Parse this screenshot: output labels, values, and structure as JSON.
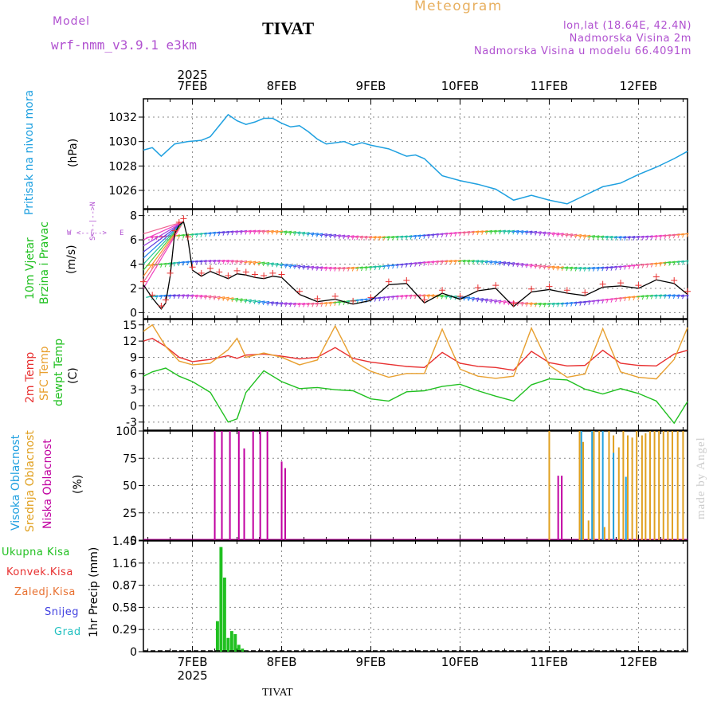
{
  "header": {
    "model_label": "Model",
    "model_name": "wrf-nmm_v3.9.1  e3km",
    "station": "TIVAT",
    "chart_title": "Meteogram",
    "coords": "lon,lat (18.64E, 42.4N)",
    "elevation": "Nadmorska Visina 2m",
    "model_elevation": "Nadmorska Visina u modelu 66.4091m"
  },
  "footer": {
    "station": "TIVAT",
    "watermark": "made by Angel"
  },
  "colors": {
    "pressure": "#1ea0e0",
    "t2m": "#e83030",
    "sfc": "#e8a030",
    "dew": "#20c020",
    "speed": "#000000",
    "cloud_high": "#20a0e0",
    "cloud_mid": "#e0a020",
    "cloud_low": "#c000a0",
    "precip": "#20c020",
    "purple": "#b050d0"
  },
  "chart_data": [
    {
      "type": "line",
      "panel": "pressure",
      "ylabel": [
        "Pritisak na nivou mora",
        "(hPa)"
      ],
      "ylim": [
        1024.5,
        1033.5
      ],
      "yticks": [
        1026,
        1028,
        1030,
        1032
      ],
      "x_unit": "days from 7FEB 00Z",
      "x": [
        -0.55,
        -0.45,
        -0.35,
        -0.2,
        -0.05,
        0.1,
        0.2,
        0.3,
        0.4,
        0.5,
        0.6,
        0.7,
        0.8,
        0.9,
        1.0,
        1.1,
        1.2,
        1.3,
        1.4,
        1.5,
        1.6,
        1.7,
        1.8,
        1.9,
        2.0,
        2.2,
        2.4,
        2.5,
        2.6,
        2.8,
        3.0,
        3.2,
        3.4,
        3.6,
        3.8,
        4.0,
        4.2,
        4.4,
        4.6,
        4.8,
        5.0,
        5.2,
        5.4,
        5.55
      ],
      "values": [
        1029.3,
        1029.5,
        1028.8,
        1029.8,
        1030.0,
        1030.1,
        1030.4,
        1031.3,
        1032.2,
        1031.7,
        1031.4,
        1031.6,
        1031.9,
        1031.9,
        1031.5,
        1031.2,
        1031.3,
        1030.8,
        1030.2,
        1029.8,
        1029.9,
        1030.0,
        1029.7,
        1029.9,
        1029.7,
        1029.4,
        1028.8,
        1028.9,
        1028.6,
        1027.2,
        1026.8,
        1026.5,
        1026.1,
        1025.2,
        1025.6,
        1025.2,
        1024.9,
        1025.6,
        1026.3,
        1026.6,
        1027.3,
        1027.9,
        1028.6,
        1029.2
      ]
    },
    {
      "type": "line",
      "panel": "wind",
      "ylabel": [
        "10m Vjetar",
        "Brzina i Pravac",
        "(m/s)"
      ],
      "compass": "N\n<-- | -->\nW   E\n<-- | -->\nS",
      "ylim": [
        -0.5,
        8.5
      ],
      "yticks": [
        0,
        2,
        4,
        6,
        8
      ],
      "x": [
        -0.55,
        -0.45,
        -0.35,
        -0.3,
        -0.25,
        -0.2,
        -0.15,
        -0.1,
        -0.05,
        0.0,
        0.1,
        0.2,
        0.3,
        0.4,
        0.5,
        0.6,
        0.7,
        0.8,
        0.9,
        1.0,
        1.2,
        1.4,
        1.6,
        1.8,
        2.0,
        2.2,
        2.4,
        2.6,
        2.8,
        3.0,
        3.2,
        3.4,
        3.6,
        3.8,
        4.0,
        4.2,
        4.4,
        4.6,
        4.8,
        5.0,
        5.2,
        5.4,
        5.55
      ],
      "values": [
        2.3,
        1.2,
        0.3,
        0.8,
        3.0,
        6.5,
        7.2,
        7.5,
        6.0,
        3.5,
        3.0,
        3.4,
        3.1,
        2.8,
        3.2,
        3.1,
        2.9,
        2.8,
        3.0,
        2.9,
        1.5,
        0.9,
        1.1,
        0.7,
        1.0,
        2.3,
        2.4,
        0.8,
        1.6,
        1.1,
        1.8,
        2.0,
        0.5,
        1.7,
        1.9,
        1.6,
        1.4,
        2.1,
        2.2,
        2.0,
        2.7,
        2.4,
        1.5
      ]
    },
    {
      "type": "line",
      "panel": "temperature",
      "ylabel": [
        "2m Temp",
        "SFC Temp",
        "dewpt Temp",
        "(C)"
      ],
      "ylim": [
        -4.5,
        16
      ],
      "yticks": [
        -3,
        0,
        3,
        6,
        9,
        12,
        15
      ],
      "x": [
        -0.55,
        -0.45,
        -0.3,
        -0.15,
        0.0,
        0.2,
        0.4,
        0.5,
        0.6,
        0.8,
        1.0,
        1.2,
        1.4,
        1.6,
        1.8,
        2.0,
        2.2,
        2.4,
        2.6,
        2.8,
        3.0,
        3.2,
        3.4,
        3.6,
        3.8,
        4.0,
        4.2,
        4.4,
        4.6,
        4.8,
        5.0,
        5.2,
        5.4,
        5.55
      ],
      "series": [
        {
          "name": "2m Temp",
          "values": [
            12.0,
            12.5,
            11.0,
            9.0,
            8.2,
            8.6,
            9.3,
            8.8,
            9.4,
            9.6,
            9.2,
            8.7,
            9.0,
            10.8,
            8.8,
            8.1,
            7.7,
            7.3,
            7.1,
            9.9,
            7.9,
            7.3,
            7.1,
            6.6,
            10.1,
            8.0,
            7.4,
            7.5,
            10.3,
            7.9,
            7.5,
            7.4,
            9.6,
            10.3
          ]
        },
        {
          "name": "SFC Temp",
          "values": [
            13.8,
            15.0,
            11.0,
            8.3,
            7.6,
            7.9,
            10.4,
            12.5,
            9.0,
            9.8,
            9.0,
            7.6,
            8.5,
            14.8,
            8.3,
            6.4,
            5.3,
            6.0,
            6.0,
            14.2,
            6.8,
            5.5,
            5.1,
            5.5,
            14.4,
            7.5,
            5.3,
            5.9,
            14.3,
            6.3,
            5.3,
            5.0,
            8.6,
            14.5
          ]
        },
        {
          "name": "dewpt Temp",
          "values": [
            5.5,
            6.3,
            7.0,
            5.5,
            4.5,
            2.5,
            -3.0,
            -2.4,
            2.5,
            6.5,
            4.5,
            3.2,
            3.4,
            3.0,
            2.8,
            1.3,
            0.9,
            2.6,
            2.8,
            3.6,
            4.0,
            2.8,
            1.8,
            0.9,
            3.9,
            5.0,
            4.8,
            3.1,
            2.2,
            3.2,
            2.3,
            0.9,
            -3.2,
            0.8
          ]
        }
      ]
    },
    {
      "type": "bar",
      "panel": "clouds",
      "ylabel": [
        "Visoka Oblacnost",
        "Srednja Oblacnost",
        "Niska Oblacnost",
        "(%)"
      ],
      "ylim": [
        0,
        100
      ],
      "yticks": [
        0,
        25,
        50,
        75,
        100
      ],
      "series": [
        {
          "name": "Niska Oblacnost",
          "x": [
            0.25,
            0.33,
            0.42,
            0.52,
            0.58,
            0.68,
            0.76,
            0.84,
            1.0,
            1.04,
            4.1,
            4.14
          ],
          "values": [
            100,
            100,
            100,
            100,
            84,
            100,
            100,
            100,
            72,
            66,
            59,
            59
          ]
        },
        {
          "name": "Srednja Oblacnost",
          "x": [
            4.0,
            4.34,
            4.38,
            4.44,
            4.5,
            4.56,
            4.62,
            4.67,
            4.72,
            4.78,
            4.83,
            4.88,
            4.93,
            4.98,
            5.04,
            5.08,
            5.13,
            5.18,
            5.23,
            5.28,
            5.33,
            5.38,
            5.44,
            5.5
          ],
          "values": [
            100,
            100,
            90,
            18,
            100,
            100,
            12,
            100,
            96,
            85,
            100,
            96,
            94,
            100,
            96,
            98,
            100,
            100,
            100,
            100,
            100,
            100,
            100,
            100
          ]
        },
        {
          "name": "Visoka Oblacnost",
          "x": [
            4.36,
            4.48,
            4.6,
            4.72,
            4.86
          ],
          "values": [
            100,
            100,
            100,
            80,
            58
          ]
        }
      ]
    },
    {
      "type": "bar",
      "panel": "precipitation",
      "ylabel": [
        "1hr Precip (mm)"
      ],
      "legend": [
        "Ukupna Kisa",
        "Konvek.Kisa",
        "Zaledj.Kisa",
        "Snijeg",
        "Grad"
      ],
      "ylim": [
        0,
        1.45
      ],
      "yticks": [
        "0",
        "0.29",
        "0.58",
        "0.87",
        "1.16",
        "1.45"
      ],
      "x": [
        0.28,
        0.32,
        0.36,
        0.4,
        0.44,
        0.48,
        0.52,
        0.56,
        0.6
      ],
      "values": [
        0.4,
        1.37,
        0.97,
        0.18,
        0.27,
        0.23,
        0.09,
        0.04,
        0.01
      ]
    }
  ],
  "xaxis": {
    "year": "2025",
    "days": [
      "7FEB",
      "8FEB",
      "9FEB",
      "10FEB",
      "11FEB",
      "12FEB"
    ],
    "xlim": [
      -0.55,
      5.55
    ]
  }
}
